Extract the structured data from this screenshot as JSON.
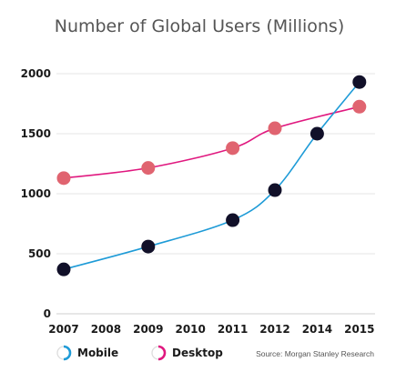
{
  "chart_data": {
    "type": "line",
    "title": "Number of Global Users (Millions)",
    "x": [
      "2007",
      "2008",
      "2009",
      "2010",
      "2011",
      "2012",
      "2014",
      "2015"
    ],
    "ylim": [
      0,
      2000
    ],
    "yticks": [
      0,
      500,
      1000,
      1500,
      2000
    ],
    "grid": "horizontal",
    "series": [
      {
        "name": "Mobile",
        "color": "#1e9bd7",
        "marker_color": "#111029",
        "points": [
          {
            "x": "2007",
            "y": 370
          },
          {
            "x": "2009",
            "y": 560
          },
          {
            "x": "2011",
            "y": 780
          },
          {
            "x": "2012",
            "y": 1030
          },
          {
            "x": "2014",
            "y": 1500
          },
          {
            "x": "2015",
            "y": 1930
          }
        ]
      },
      {
        "name": "Desktop",
        "color": "#e0187f",
        "marker_color": "#e06470",
        "points": [
          {
            "x": "2007",
            "y": 1130
          },
          {
            "x": "2009",
            "y": 1215
          },
          {
            "x": "2011",
            "y": 1380
          },
          {
            "x": "2012",
            "y": 1545
          },
          {
            "x": "2015",
            "y": 1725
          }
        ]
      }
    ],
    "legend": {
      "placement": "bottom-left",
      "items": [
        {
          "label": "Mobile",
          "icon": "mobile-legend-icon",
          "color": "#1e9bd7"
        },
        {
          "label": "Desktop",
          "icon": "desktop-legend-icon",
          "color": "#e0187f"
        }
      ]
    },
    "source": "Source: Morgan Stanley Research"
  }
}
